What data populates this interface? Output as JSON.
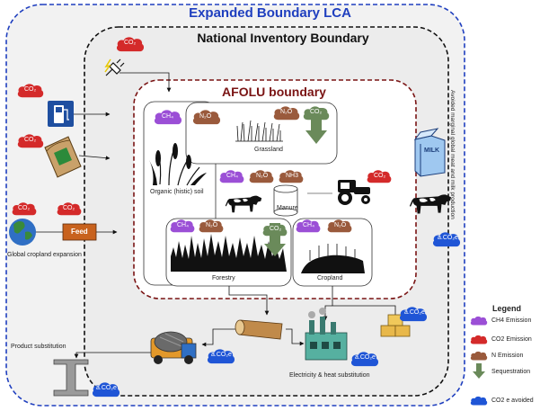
{
  "titles": {
    "expanded": "Expanded Boundary LCA",
    "national": "National Inventory Boundary",
    "afolu": "AFOLU boundary"
  },
  "labels": {
    "grassland": "Grassland",
    "organic_soil": "Organic (histic) soil",
    "manure": "Manure",
    "forestry": "Forestry",
    "cropland": "Cropland",
    "feed": "Feed",
    "global_cropland": "Global cropland expansion",
    "product_substitution": "Product substitution",
    "electricity_heat": "Electricity & heat substitution",
    "avoided_marginal": "Avoided marginal global meat and milk production",
    "milk": "MILK"
  },
  "gases": {
    "co2": "CO₂",
    "ch4": "CH₄",
    "n2o": "N₂O",
    "nh3": "NH3",
    "a_co2e": "a.CO₂e"
  },
  "legend": {
    "title": "Legend",
    "items": [
      {
        "text": "CH4 Emission",
        "color": "#9b4fd6",
        "icon": "ch4-cloud-icon"
      },
      {
        "text": "CO2 Emission",
        "color": "#d42a2a",
        "icon": "co2-cloud-icon"
      },
      {
        "text": "N Emission",
        "color": "#9a5a3c",
        "icon": "n-cloud-icon"
      },
      {
        "text": "Sequestration",
        "color": "#6a8a5a",
        "icon": "sequestration-arrow-icon"
      },
      {
        "text": "CO2 e avoided",
        "color": "#1f55d6",
        "icon": "avoided-cloud-icon"
      }
    ]
  },
  "colors": {
    "outer_border": "#1f3fbf",
    "national_border": "#111111",
    "afolu_border": "#7a1414",
    "co2_cloud": "#d42a2a",
    "ch4_cloud": "#9b4fd6",
    "n_cloud": "#9a5a3c",
    "avoided_cloud": "#1f55d6",
    "sequestration": "#6a8a5a",
    "feed_box": "#c8621e"
  }
}
